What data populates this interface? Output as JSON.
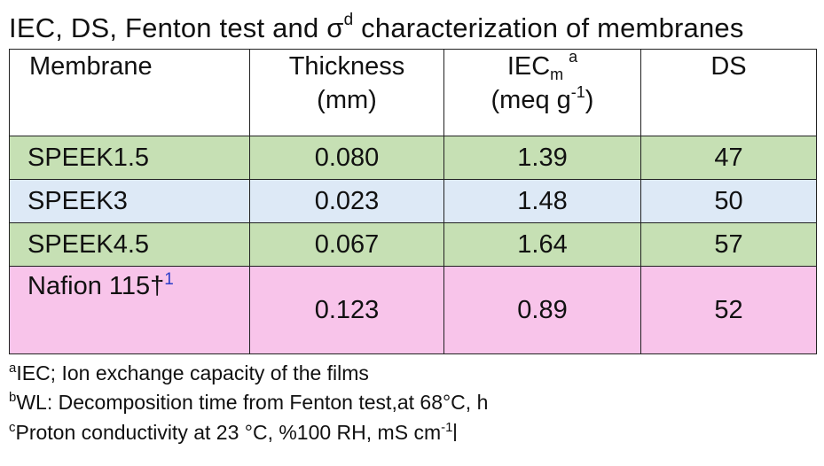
{
  "title": {
    "text": "IEC, DS, Fenton test and σ",
    "sup": "d",
    "tail": " characterization of membranes"
  },
  "table": {
    "headers": {
      "membrane": "Membrane",
      "thickness_line1": "Thickness",
      "thickness_line2": "(mm)",
      "iec_base": "IEC",
      "iec_sub": "m",
      "iec_sup": "a",
      "iec_unit_pre": "(meq g",
      "iec_unit_sup": "-1",
      "iec_unit_post": ")",
      "ds": "DS"
    },
    "rows": [
      {
        "membrane": "SPEEK1.5",
        "thickness": "0.080",
        "iec": "1.39",
        "ds": "47"
      },
      {
        "membrane": "SPEEK3",
        "thickness": "0.023",
        "iec": "1.48",
        "ds": "50"
      },
      {
        "membrane": "SPEEK4.5",
        "thickness": "0.067",
        "iec": "1.64",
        "ds": "57"
      },
      {
        "membrane": "Nafion 115",
        "dagger": "†",
        "ref": "1",
        "thickness": "0.123",
        "iec": "0.89",
        "ds": "52"
      }
    ],
    "colors": {
      "green": "#c6e0b4",
      "blue": "#dde9f6",
      "pink": "#f8c4ea"
    }
  },
  "footnotes": [
    {
      "mark": "a",
      "text": "IEC; Ion exchange capacity of the films"
    },
    {
      "mark": "b",
      "text": "WL: Decomposition time from Fenton test,at 68°C, h"
    },
    {
      "mark": "c",
      "text": "Proton conductivity at 23 °C, %100 RH, mS cm",
      "sup": "-1"
    }
  ]
}
